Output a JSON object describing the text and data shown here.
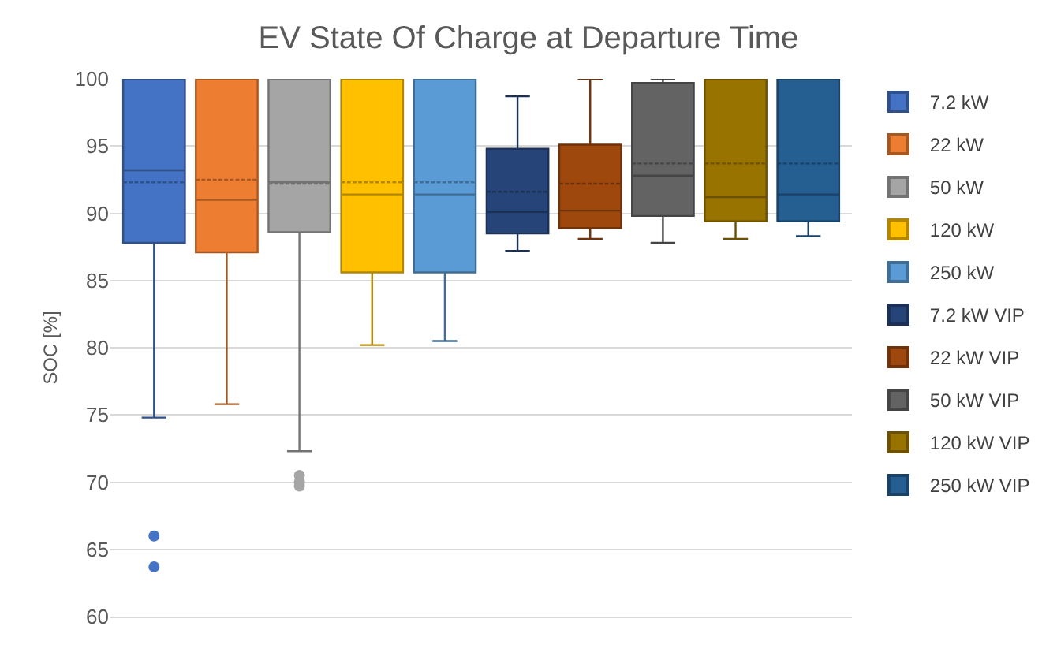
{
  "chart_data": {
    "type": "box",
    "title": "EV State Of Charge at Departure Time",
    "ylabel": "SOC [%]",
    "categories": [
      null
    ],
    "ylim": [
      60,
      100
    ],
    "yticks": [
      60,
      65,
      70,
      75,
      80,
      85,
      90,
      95,
      100
    ],
    "grid": "y",
    "legend": "right",
    "marker": "circle",
    "series": [
      {
        "name": "7.2 kW",
        "color": "#4472c4",
        "boxes": [
          {
            "low": 74.8,
            "q1": 87.8,
            "median": 93.2,
            "q3": 100,
            "high": 100,
            "mean": 92.3,
            "outliers": [
              66,
              63.7
            ]
          }
        ]
      },
      {
        "name": "22 kW",
        "color": "#ed7d31",
        "boxes": [
          {
            "low": 75.8,
            "q1": 87.1,
            "median": 91.0,
            "q3": 100,
            "high": 100,
            "mean": 92.5
          }
        ]
      },
      {
        "name": "50 kW",
        "color": "#a5a5a5",
        "boxes": [
          {
            "low": 72.3,
            "q1": 88.6,
            "median": 92.3,
            "q3": 100,
            "high": 100,
            "mean": 92.2,
            "outliers": [
              70.5,
              70.0,
              69.7
            ]
          }
        ]
      },
      {
        "name": "120 kW",
        "color": "#ffc000",
        "boxes": [
          {
            "low": 80.2,
            "q1": 85.6,
            "median": 91.4,
            "q3": 100,
            "high": 100,
            "mean": 92.3
          }
        ]
      },
      {
        "name": "250 kW",
        "color": "#5b9bd5",
        "boxes": [
          {
            "low": 80.5,
            "q1": 85.6,
            "median": 91.4,
            "q3": 100,
            "high": 100,
            "mean": 92.3
          }
        ]
      },
      {
        "name": "7.2 kW VIP",
        "color": "#264478",
        "boxes": [
          {
            "low": 87.2,
            "q1": 88.5,
            "median": 90.1,
            "q3": 94.8,
            "high": 98.7,
            "mean": 91.6
          }
        ]
      },
      {
        "name": "22 kW VIP",
        "color": "#9e480e",
        "boxes": [
          {
            "low": 88.1,
            "q1": 88.9,
            "median": 90.2,
            "q3": 95.1,
            "high": 100,
            "mean": 92.2
          }
        ]
      },
      {
        "name": "50 kW VIP",
        "color": "#636363",
        "boxes": [
          {
            "low": 87.8,
            "q1": 89.8,
            "median": 92.8,
            "q3": 99.7,
            "high": 100,
            "mean": 93.7
          }
        ]
      },
      {
        "name": "120 kW VIP",
        "color": "#997300",
        "boxes": [
          {
            "low": 88.1,
            "q1": 89.4,
            "median": 91.2,
            "q3": 100,
            "high": 100,
            "mean": 93.7
          }
        ]
      },
      {
        "name": "250 kW VIP",
        "color": "#255e91",
        "boxes": [
          {
            "low": 88.3,
            "q1": 89.4,
            "median": 91.4,
            "q3": 100,
            "high": 100,
            "mean": 93.7
          }
        ]
      }
    ]
  }
}
